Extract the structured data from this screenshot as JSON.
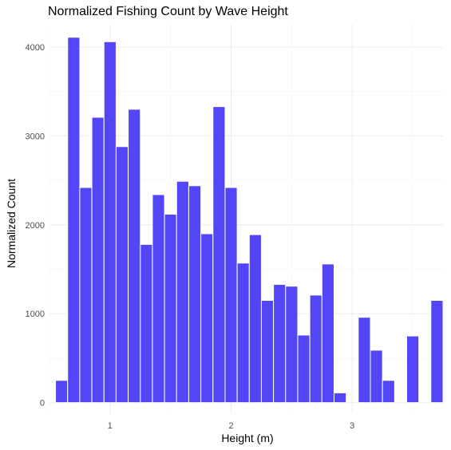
{
  "chart_data": {
    "type": "bar",
    "title": "Normalized Fishing Count by Wave Height",
    "xlabel": "Height (m)",
    "ylabel": "Normalized Count",
    "xlim": [
      0.5,
      3.75
    ],
    "ylim": [
      -120,
      4260
    ],
    "xticks": [
      1,
      2,
      3
    ],
    "yticks": [
      0,
      1000,
      2000,
      3000,
      4000
    ],
    "bin_width": 0.1,
    "bar_color": "#4a3cf5",
    "grid": true,
    "x": [
      0.6,
      0.7,
      0.8,
      0.9,
      1.0,
      1.1,
      1.2,
      1.3,
      1.4,
      1.5,
      1.6,
      1.7,
      1.8,
      1.9,
      2.0,
      2.1,
      2.2,
      2.3,
      2.4,
      2.5,
      2.6,
      2.7,
      2.8,
      2.9,
      3.0,
      3.1,
      3.2,
      3.3,
      3.4,
      3.5,
      3.6,
      3.7
    ],
    "values": [
      250,
      4110,
      2420,
      3210,
      4060,
      2880,
      3300,
      1780,
      2340,
      2120,
      2490,
      2440,
      1900,
      3330,
      2420,
      1570,
      1890,
      1150,
      1330,
      1310,
      760,
      1210,
      1560,
      110,
      0,
      960,
      590,
      250,
      0,
      750,
      0,
      1150
    ]
  }
}
